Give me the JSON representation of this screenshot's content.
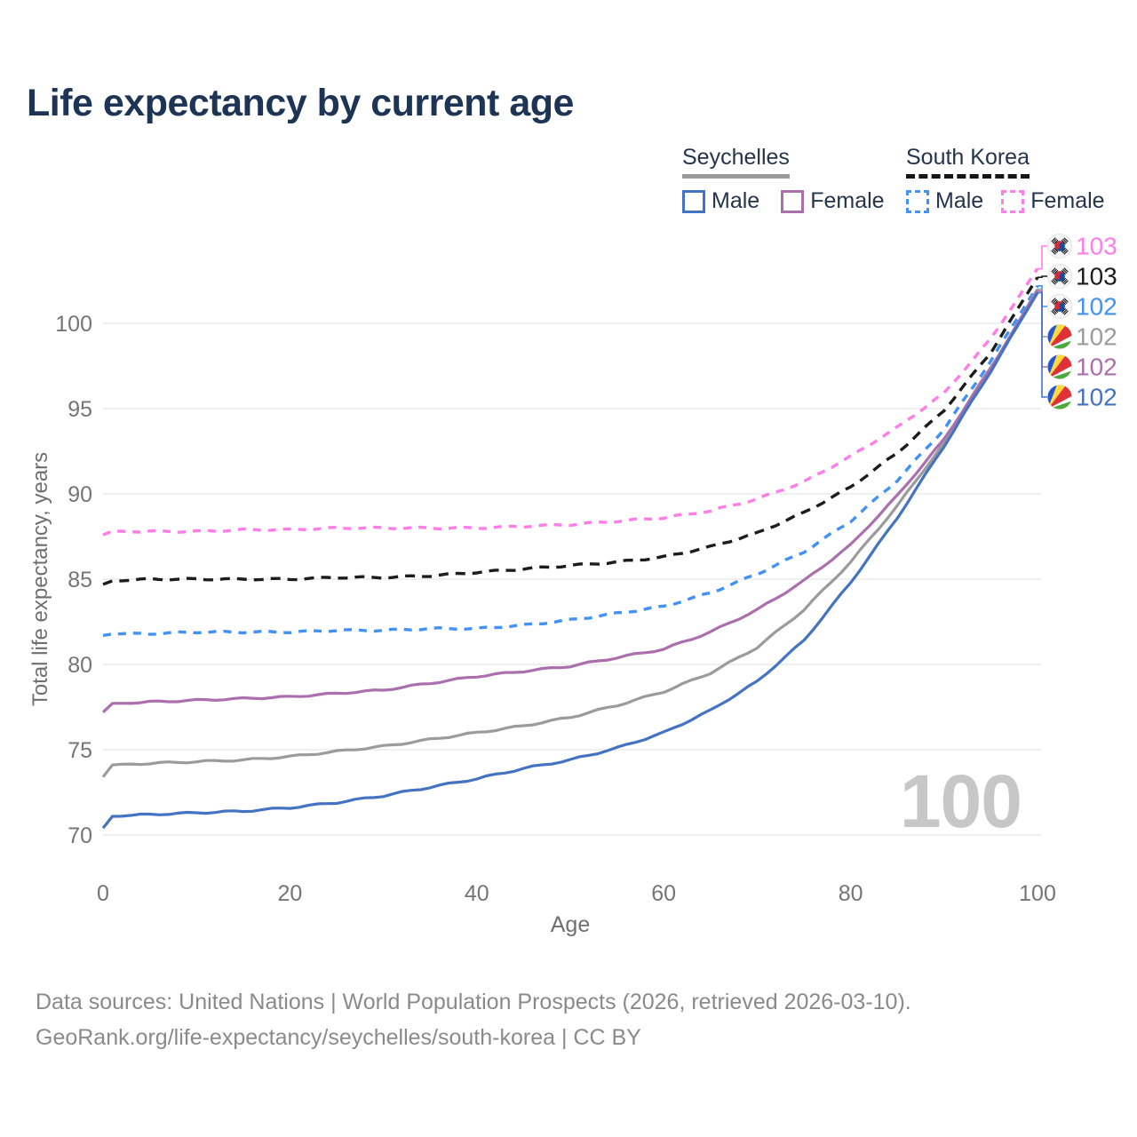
{
  "header": {
    "title": "Life expectancy by current age"
  },
  "legend": {
    "groups": [
      {
        "country": "Seychelles",
        "line_style": "solid",
        "underline_color": "#9b9b9b",
        "items": [
          {
            "label": "Male",
            "color": "#4473c2",
            "dashed": false
          },
          {
            "label": "Female",
            "color": "#ac6fad",
            "dashed": false
          }
        ]
      },
      {
        "country": "South Korea",
        "line_style": "dashed",
        "underline_color": "#161616",
        "items": [
          {
            "label": "Male",
            "color": "#4292f4",
            "dashed": true
          },
          {
            "label": "Female",
            "color": "#ff7de8",
            "dashed": true
          }
        ]
      }
    ]
  },
  "chart_data": {
    "type": "line",
    "title": "Life expectancy by current age",
    "xlabel": "Age",
    "ylabel": "Total life expectancy, years",
    "x_ticks": [
      0,
      20,
      40,
      60,
      80,
      100
    ],
    "y_ticks": [
      70,
      75,
      80,
      85,
      90,
      95,
      100
    ],
    "xlim": [
      0,
      100
    ],
    "ylim": [
      70,
      103.5
    ],
    "grid": "horizontal",
    "age_counter": "100",
    "ages": [
      0,
      1,
      5,
      10,
      15,
      20,
      25,
      30,
      35,
      40,
      45,
      50,
      55,
      60,
      65,
      70,
      75,
      80,
      85,
      90,
      95,
      100
    ],
    "series": [
      {
        "name": "South Korea Female",
        "country": "South Korea",
        "sex": "female",
        "color": "#ff7de8",
        "dashed": true,
        "flag": "KR",
        "end_label": "103",
        "label_row": 0,
        "values": [
          87.6,
          87.8,
          87.8,
          87.8,
          87.9,
          87.9,
          88.0,
          88.0,
          88.0,
          88.0,
          88.1,
          88.2,
          88.4,
          88.6,
          89.0,
          89.7,
          90.7,
          92.2,
          93.9,
          95.9,
          99.1,
          103.2
        ]
      },
      {
        "name": "South Korea",
        "country": "South Korea",
        "sex": "both",
        "color": "#1c1c1c",
        "dashed": true,
        "flag": "KR",
        "end_label": "103",
        "label_row": 1,
        "values": [
          84.7,
          84.9,
          85.0,
          85.0,
          85.0,
          85.0,
          85.1,
          85.1,
          85.2,
          85.4,
          85.6,
          85.8,
          86.0,
          86.3,
          86.9,
          87.7,
          88.9,
          90.4,
          92.4,
          94.9,
          98.3,
          102.7
        ]
      },
      {
        "name": "South Korea Male",
        "country": "South Korea",
        "sex": "male",
        "color": "#4292f4",
        "dashed": true,
        "flag": "KR",
        "end_label": "102",
        "label_row": 2,
        "values": [
          81.7,
          81.8,
          81.8,
          81.9,
          81.9,
          81.9,
          82.0,
          82.0,
          82.1,
          82.1,
          82.3,
          82.6,
          83.0,
          83.4,
          84.2,
          85.3,
          86.6,
          88.4,
          90.8,
          93.8,
          97.8,
          102.2
        ]
      },
      {
        "name": "Seychelles",
        "country": "Seychelles",
        "sex": "both",
        "color": "#9b9b9b",
        "dashed": false,
        "flag": "SC",
        "end_label": "102",
        "label_row": 3,
        "values": [
          73.4,
          74.1,
          74.2,
          74.3,
          74.4,
          74.6,
          74.9,
          75.2,
          75.6,
          76.0,
          76.4,
          76.9,
          77.6,
          78.4,
          79.5,
          81.0,
          83.2,
          86.0,
          89.3,
          93.0,
          97.3,
          102.0
        ]
      },
      {
        "name": "Seychelles Female",
        "country": "Seychelles",
        "sex": "female",
        "color": "#ac6fad",
        "dashed": false,
        "flag": "SC",
        "end_label": "102",
        "label_row": 4,
        "values": [
          77.2,
          77.7,
          77.8,
          77.9,
          78.0,
          78.1,
          78.3,
          78.5,
          78.9,
          79.3,
          79.6,
          79.9,
          80.4,
          80.9,
          81.9,
          83.2,
          84.9,
          87.0,
          89.9,
          93.2,
          97.4,
          101.9
        ]
      },
      {
        "name": "Seychelles Male",
        "country": "Seychelles",
        "sex": "male",
        "color": "#4473c2",
        "dashed": false,
        "flag": "SC",
        "end_label": "102",
        "label_row": 5,
        "values": [
          70.4,
          71.1,
          71.2,
          71.3,
          71.4,
          71.6,
          71.9,
          72.3,
          72.8,
          73.3,
          73.9,
          74.4,
          75.1,
          76.0,
          77.3,
          79.0,
          81.4,
          84.8,
          88.6,
          92.8,
          97.2,
          101.8
        ]
      }
    ]
  },
  "footer": {
    "line1": "Data sources: United Nations | World Population Prospects (2026, retrieved 2026-03-10).",
    "line2": "GeoRank.org/life-expectancy/seychelles/south-korea | CC BY"
  }
}
